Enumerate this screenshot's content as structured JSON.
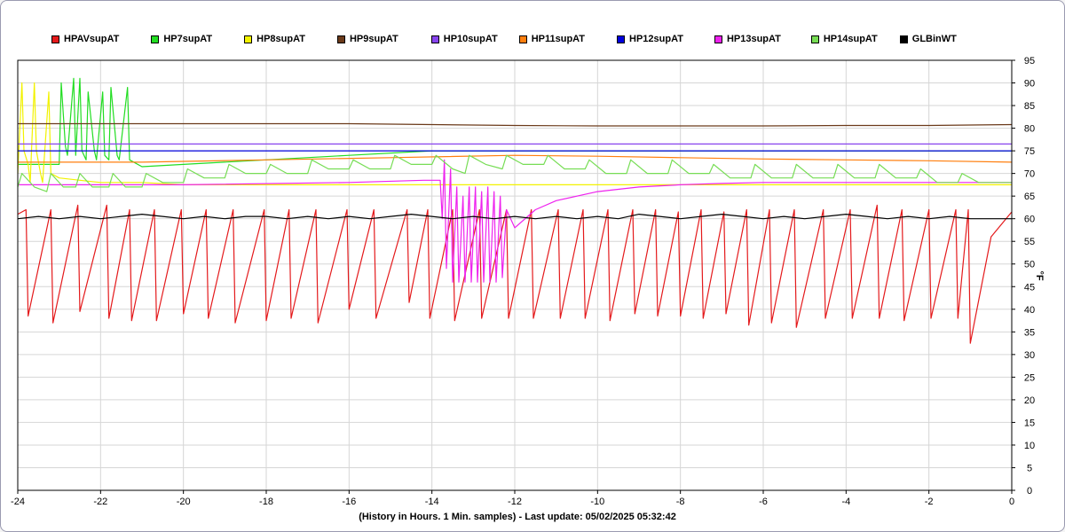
{
  "chart_data": {
    "type": "line",
    "xlabel": "(History in Hours. 1 Min. samples) - Last update: 05/02/2025 05:32:42",
    "ylabel": "°F",
    "xlim": [
      -24,
      0
    ],
    "ylim": [
      0,
      95
    ],
    "x_ticks": [
      -24,
      -22,
      -20,
      -18,
      -16,
      -14,
      -12,
      -10,
      -8,
      -6,
      -4,
      -2,
      0
    ],
    "y_ticks": [
      0,
      5,
      10,
      15,
      20,
      25,
      30,
      35,
      40,
      45,
      50,
      55,
      60,
      65,
      70,
      75,
      80,
      85,
      90,
      95
    ],
    "grid": true,
    "legend": "top",
    "series": [
      {
        "name": "HPAVsupAT",
        "color": "#e41a1c",
        "x": [
          -24.0,
          -23.8,
          -23.75,
          -23.2,
          -23.15,
          -22.55,
          -22.5,
          -21.85,
          -21.8,
          -21.3,
          -21.25,
          -20.7,
          -20.65,
          -20.05,
          -20.0,
          -19.45,
          -19.4,
          -18.8,
          -18.75,
          -18.05,
          -18.0,
          -17.45,
          -17.4,
          -16.8,
          -16.75,
          -16.05,
          -16.0,
          -15.4,
          -15.35,
          -14.6,
          -14.55,
          -14.1,
          -14.05,
          -13.5,
          -13.45,
          -12.85,
          -12.8,
          -12.2,
          -12.15,
          -11.6,
          -11.55,
          -10.95,
          -10.9,
          -10.35,
          -10.3,
          -9.75,
          -9.7,
          -9.15,
          -9.1,
          -8.6,
          -8.55,
          -8.05,
          -8.0,
          -7.5,
          -7.45,
          -6.95,
          -6.9,
          -6.4,
          -6.35,
          -5.85,
          -5.8,
          -5.25,
          -5.2,
          -4.55,
          -4.5,
          -3.9,
          -3.85,
          -3.25,
          -3.2,
          -2.65,
          -2.6,
          -2.0,
          -1.95,
          -1.35,
          -1.3,
          -1.05,
          -1.0,
          -0.5,
          0.0
        ],
        "y": [
          61,
          62,
          38.5,
          62,
          37,
          63,
          39.5,
          63,
          38,
          62,
          37.5,
          62,
          37.5,
          62,
          39,
          62,
          38,
          62,
          37,
          62,
          37.5,
          62,
          38,
          62,
          37,
          62,
          40,
          62,
          38,
          62,
          41.5,
          62,
          38,
          62,
          37.5,
          62,
          38,
          62,
          38,
          62,
          38,
          62,
          38,
          62,
          38,
          62,
          37.5,
          62,
          39,
          62,
          38.5,
          61.5,
          38.5,
          62,
          38,
          61.5,
          39,
          62,
          36.5,
          62,
          37,
          62,
          36,
          62,
          38,
          62,
          38,
          63,
          38,
          62,
          37.5,
          62,
          38,
          62,
          38,
          62,
          32.5,
          56,
          61.5
        ]
      },
      {
        "name": "HP7supAT",
        "color": "#22dd22",
        "x": [
          -24.0,
          -23.0,
          -22.95,
          -22.85,
          -22.8,
          -22.65,
          -22.6,
          -22.5,
          -22.45,
          -22.35,
          -22.3,
          -22.15,
          -22.1,
          -21.95,
          -21.9,
          -21.8,
          -21.75,
          -21.6,
          -21.55,
          -21.35,
          -21.3,
          -21.0,
          -20.0,
          -18.0,
          -16.0,
          -14.0,
          -12.0,
          -10.0,
          -8.0,
          -6.0,
          -4.0,
          -2.0,
          0.0
        ],
        "y": [
          72,
          72,
          90,
          76,
          74,
          91,
          74,
          91,
          75,
          73,
          88,
          75,
          73,
          88,
          74,
          73,
          89,
          74,
          73,
          89,
          73,
          71.5,
          72,
          73,
          74,
          75,
          75,
          75,
          75,
          75,
          75,
          75,
          75
        ]
      },
      {
        "name": "HP8supAT",
        "color": "#f2f200",
        "x": [
          -24.0,
          -23.9,
          -23.85,
          -23.75,
          -23.7,
          -23.6,
          -23.55,
          -23.45,
          -23.4,
          -23.25,
          -23.2,
          -23.0,
          -22.5,
          -22.0,
          -21.0,
          -20.0,
          -18.0,
          -16.0,
          -14.0,
          -12.0,
          -10.0,
          -8.0,
          -6.0,
          -4.0,
          -2.0,
          0.0
        ],
        "y": [
          70,
          90,
          75,
          72,
          68,
          90,
          75,
          70,
          68,
          88,
          70,
          69,
          68.5,
          68,
          68,
          67.5,
          67.5,
          67.5,
          67.5,
          67.5,
          67.5,
          67.5,
          67.5,
          67.5,
          67.5,
          67.5
        ]
      },
      {
        "name": "HP9supAT",
        "color": "#6b3a1a",
        "x": [
          -24.0,
          -20.0,
          -16.0,
          -14.0,
          -12.0,
          -10.0,
          -8.0,
          -6.0,
          -4.0,
          -2.0,
          0.0
        ],
        "y": [
          81,
          81,
          81,
          80.8,
          80.6,
          80.5,
          80.5,
          80.5,
          80.6,
          80.6,
          80.8
        ]
      },
      {
        "name": "HP10supAT",
        "color": "#8844ee",
        "x": [
          -24.0,
          -18.0,
          -12.0,
          -6.0,
          0.0
        ],
        "y": [
          76.5,
          76.5,
          76.5,
          76.5,
          76.5
        ]
      },
      {
        "name": "HP11supAT",
        "color": "#ff7f0e",
        "x": [
          -24.0,
          -21.0,
          -18.0,
          -15.0,
          -12.0,
          -10.0,
          -8.0,
          -6.0,
          -4.0,
          -2.0,
          0.0
        ],
        "y": [
          72.5,
          72.5,
          73,
          73.5,
          74,
          73.8,
          73.5,
          73.2,
          73,
          72.8,
          72.5
        ]
      },
      {
        "name": "HP12supAT",
        "color": "#0000dd",
        "x": [
          -24.0,
          -12.0,
          0.0
        ],
        "y": [
          75,
          75,
          75
        ]
      },
      {
        "name": "HP13supAT",
        "color": "#ee22ee",
        "x": [
          -24.0,
          -20.0,
          -16.0,
          -14.2,
          -13.8,
          -13.75,
          -13.7,
          -13.65,
          -13.55,
          -13.5,
          -13.4,
          -13.35,
          -13.25,
          -13.2,
          -13.1,
          -13.05,
          -12.95,
          -12.9,
          -12.8,
          -12.75,
          -12.65,
          -12.6,
          -12.5,
          -12.45,
          -12.35,
          -12.3,
          -12.2,
          -12.0,
          -11.5,
          -11.0,
          -10.0,
          -9.0,
          -8.0,
          -7.0,
          -6.0,
          -4.0,
          -2.0,
          0.0
        ],
        "y": [
          67.5,
          67.5,
          68,
          68.5,
          68.5,
          60,
          73,
          49,
          71,
          46,
          67,
          46,
          65,
          46,
          67,
          46,
          67,
          46,
          66,
          46,
          67,
          46,
          66,
          46,
          65,
          47,
          62,
          58,
          62,
          64,
          66,
          67,
          67.5,
          67.8,
          68,
          68,
          68,
          68
        ]
      },
      {
        "name": "HP14supAT",
        "color": "#77dd55",
        "x": [
          -24.0,
          -23.9,
          -23.6,
          -23.3,
          -23.2,
          -22.9,
          -22.6,
          -22.5,
          -22.2,
          -21.8,
          -21.7,
          -21.4,
          -21.0,
          -20.9,
          -20.5,
          -20.0,
          -19.9,
          -19.5,
          -19.0,
          -18.9,
          -18.5,
          -18.0,
          -17.9,
          -17.5,
          -17.0,
          -16.9,
          -16.5,
          -16.0,
          -15.9,
          -15.5,
          -15.0,
          -14.9,
          -14.5,
          -14.0,
          -13.9,
          -13.5,
          -13.2,
          -13.1,
          -12.7,
          -12.3,
          -12.2,
          -11.8,
          -11.3,
          -11.2,
          -10.8,
          -10.3,
          -10.2,
          -9.8,
          -9.3,
          -9.2,
          -8.8,
          -8.3,
          -8.2,
          -7.8,
          -7.3,
          -7.2,
          -6.8,
          -6.3,
          -6.2,
          -5.8,
          -5.3,
          -5.2,
          -4.8,
          -4.3,
          -4.2,
          -3.8,
          -3.3,
          -3.2,
          -2.8,
          -2.3,
          -2.2,
          -1.8,
          -1.3,
          -1.2,
          -0.8,
          0.0
        ],
        "y": [
          67,
          70,
          67,
          66,
          70,
          67,
          67,
          70,
          67,
          67,
          70,
          67,
          67,
          70,
          68,
          68,
          71,
          69,
          69,
          72,
          70,
          70,
          72,
          70,
          70,
          73,
          71,
          71,
          73,
          71,
          71,
          74,
          72,
          72,
          74,
          71,
          70,
          74,
          72,
          71,
          74,
          72,
          72,
          74,
          71,
          71,
          73,
          70,
          70,
          73,
          70,
          70,
          73,
          70,
          70,
          72,
          69,
          69,
          72,
          69,
          69,
          72,
          69,
          69,
          72,
          69,
          69,
          72,
          69,
          69,
          71,
          68,
          68,
          70,
          68,
          68
        ]
      },
      {
        "name": "GLBinWT",
        "color": "#000000",
        "x": [
          -24.0,
          -23.5,
          -23.0,
          -22.5,
          -22.0,
          -21.5,
          -21.0,
          -20.5,
          -20.0,
          -19.5,
          -19.0,
          -18.5,
          -18.0,
          -17.5,
          -17.0,
          -16.5,
          -16.0,
          -15.5,
          -15.0,
          -14.5,
          -14.0,
          -13.5,
          -13.0,
          -12.5,
          -12.0,
          -11.5,
          -11.0,
          -10.5,
          -10.0,
          -9.5,
          -9.0,
          -8.5,
          -8.0,
          -7.5,
          -7.0,
          -6.5,
          -6.0,
          -5.5,
          -5.0,
          -4.5,
          -4.0,
          -3.5,
          -3.0,
          -2.5,
          -2.0,
          -1.5,
          -1.0,
          -0.5,
          0.0
        ],
        "y": [
          60,
          60.5,
          60,
          60.5,
          60,
          60.5,
          61,
          60.5,
          60,
          60.5,
          60,
          60.5,
          60.5,
          60,
          60.5,
          60,
          60.5,
          60,
          60.5,
          61,
          60.5,
          60,
          60.5,
          60,
          60.5,
          60,
          60.5,
          60,
          60.5,
          60,
          61,
          60.5,
          60,
          60.5,
          61,
          60.5,
          60,
          60.5,
          60,
          60.5,
          61,
          60.5,
          60,
          60.5,
          60,
          60.5,
          60,
          60,
          60
        ]
      }
    ]
  }
}
